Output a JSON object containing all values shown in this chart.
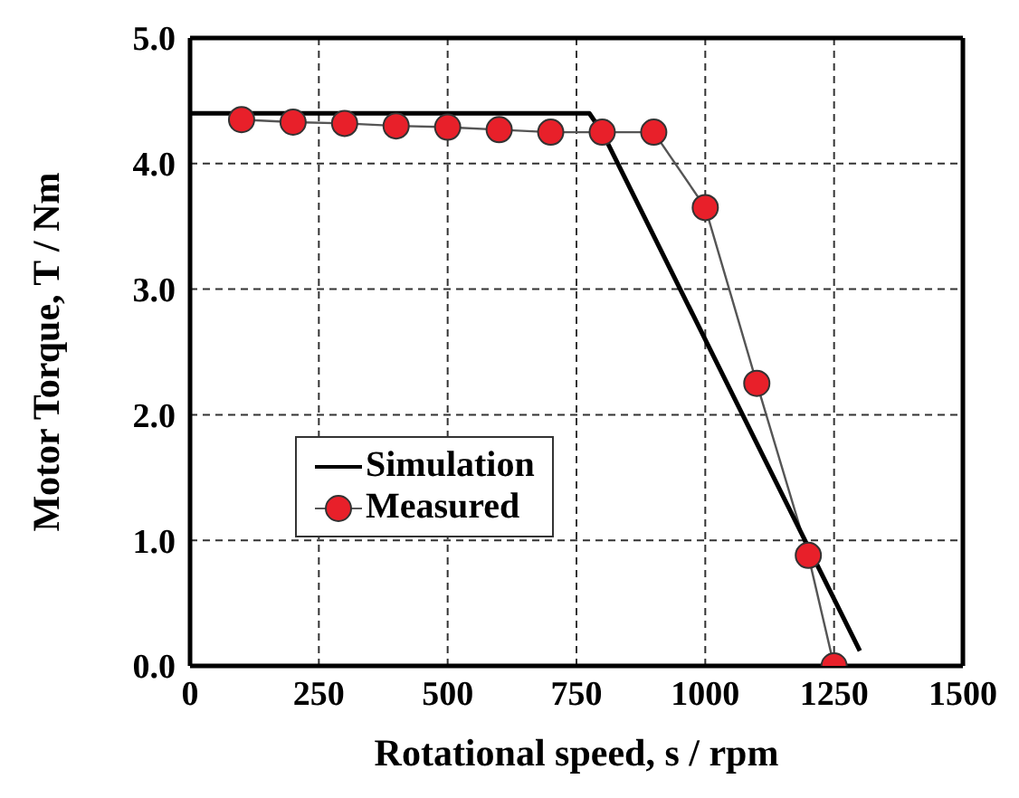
{
  "chart_data": {
    "type": "line",
    "xlabel": "Rotational speed, s / rpm",
    "ylabel": "Motor Torque, T / Nm",
    "xlim": [
      0,
      1500
    ],
    "xticks": [
      0,
      250,
      500,
      750,
      1000,
      1250,
      1500
    ],
    "ylim": [
      0,
      5
    ],
    "yticks": [
      {
        "value": 0,
        "label": "0.0"
      },
      {
        "value": 1,
        "label": "1.0"
      },
      {
        "value": 2,
        "label": "2.0"
      },
      {
        "value": 3,
        "label": "3.0"
      },
      {
        "value": 4,
        "label": "4.0"
      },
      {
        "value": 5,
        "label": "5.0"
      }
    ],
    "grid": true,
    "legend": "bottom left",
    "series": [
      {
        "name": "Simulation",
        "color": "#000000",
        "marker": "none",
        "x": [
          0,
          775,
          800,
          1300
        ],
        "values": [
          4.4,
          4.4,
          4.25,
          0.12
        ]
      },
      {
        "name": "Measured",
        "color": "#e8202a",
        "marker": "circle",
        "x": [
          100,
          200,
          300,
          400,
          500,
          600,
          700,
          800,
          900,
          1000,
          1100,
          1200,
          1250
        ],
        "values": [
          4.35,
          4.33,
          4.32,
          4.3,
          4.29,
          4.27,
          4.25,
          4.25,
          4.25,
          3.65,
          2.25,
          0.88,
          0.0
        ]
      }
    ]
  }
}
